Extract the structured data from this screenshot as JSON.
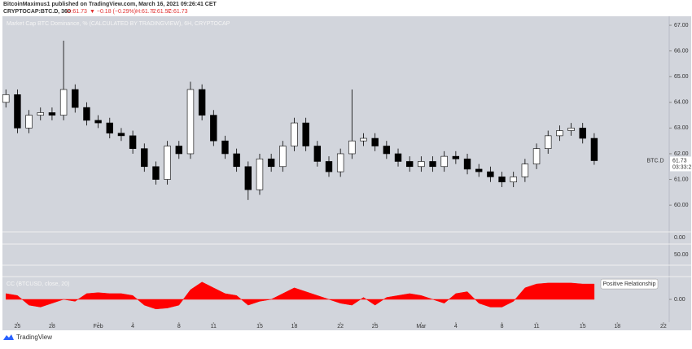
{
  "header": {
    "publisher": "BitcoinMaximus1 published on TradingView.com, March 16, 2021 09:26:41 CET",
    "symbol": "CRYPTOCAP:BTC.D, 360",
    "open": "O:61.73",
    "change": "▼ −0.18 (−0.29%)",
    "high": "H:61.77",
    "low": "L:61.57",
    "close": "C:61.73"
  },
  "panes": [
    "0.00",
    "50.00"
  ],
  "footer": "TradingView",
  "chart_data": [
    {
      "type": "candlestick",
      "title": "Market Cap BTC Dominance, % (CALCULATED BY TRADINGVIEW), 6H, CRYPTOCAP",
      "symbol_label": "BTC.D",
      "last_price": {
        "value": 61.73,
        "label": "61.73"
      },
      "countdown": "03:33:2",
      "x": [
        -1,
        0,
        1,
        2,
        3,
        4,
        5,
        6,
        7,
        8,
        9,
        10,
        11,
        12,
        13,
        14,
        15,
        16,
        17,
        18,
        19,
        20,
        21,
        22,
        23,
        24,
        25,
        26,
        27,
        28,
        29,
        30,
        31,
        32,
        33,
        34,
        35,
        36,
        37,
        38,
        39,
        40,
        41,
        42,
        43,
        44,
        45,
        46,
        47,
        48,
        49,
        50
      ],
      "open": [
        64.0,
        64.3,
        63.0,
        63.5,
        63.6,
        63.5,
        64.5,
        63.8,
        63.3,
        63.2,
        62.8,
        62.7,
        62.2,
        61.5,
        61.0,
        62.3,
        62.0,
        64.5,
        63.5,
        62.5,
        62.0,
        61.5,
        60.6,
        61.8,
        61.5,
        62.3,
        63.2,
        62.3,
        61.7,
        61.3,
        62.0,
        62.5,
        62.6,
        62.3,
        62.0,
        61.7,
        61.5,
        61.7,
        61.5,
        61.9,
        61.8,
        61.4,
        61.3,
        61.1,
        60.9,
        61.1,
        61.6,
        62.2,
        62.7,
        62.9,
        63.0,
        62.6
      ],
      "high": [
        64.5,
        64.5,
        63.7,
        63.8,
        63.8,
        66.4,
        64.7,
        64.0,
        63.5,
        63.4,
        63.0,
        62.9,
        62.4,
        61.7,
        62.5,
        62.5,
        64.8,
        64.7,
        63.7,
        62.7,
        62.2,
        61.7,
        62.0,
        62.0,
        62.5,
        63.4,
        63.4,
        62.5,
        61.9,
        62.2,
        64.5,
        62.8,
        62.8,
        62.5,
        62.2,
        61.9,
        61.9,
        61.9,
        62.1,
        62.1,
        62.0,
        61.6,
        61.5,
        61.3,
        61.3,
        61.8,
        62.4,
        62.9,
        63.1,
        63.2,
        63.2,
        62.8
      ],
      "low": [
        63.8,
        62.8,
        62.8,
        63.3,
        63.3,
        63.3,
        63.6,
        63.1,
        63.0,
        62.6,
        62.5,
        62.0,
        61.3,
        60.8,
        60.8,
        61.8,
        61.8,
        63.3,
        62.3,
        61.8,
        61.3,
        60.2,
        60.4,
        61.3,
        61.3,
        62.1,
        62.1,
        61.5,
        61.1,
        61.1,
        61.8,
        62.3,
        62.1,
        61.8,
        61.5,
        61.3,
        61.3,
        61.3,
        61.3,
        61.6,
        61.2,
        61.1,
        60.9,
        60.7,
        60.7,
        60.9,
        61.4,
        62.0,
        62.5,
        62.7,
        62.4,
        61.57
      ],
      "close": [
        64.3,
        63.0,
        63.5,
        63.6,
        63.5,
        64.5,
        63.8,
        63.3,
        63.2,
        62.8,
        62.7,
        62.2,
        61.5,
        61.0,
        62.3,
        62.0,
        64.5,
        63.5,
        62.5,
        62.0,
        61.5,
        60.6,
        61.8,
        61.5,
        62.3,
        63.2,
        62.3,
        61.7,
        61.3,
        62.0,
        62.5,
        62.6,
        62.3,
        62.0,
        61.7,
        61.5,
        61.7,
        61.5,
        61.9,
        61.8,
        61.4,
        61.3,
        61.1,
        60.9,
        61.1,
        61.6,
        62.2,
        62.7,
        62.9,
        63.0,
        62.6,
        61.73
      ],
      "up_color": "#ffffff",
      "down_color": "#000000",
      "xlim": [
        -1.3,
        56.5
      ],
      "xticks": [
        {
          "value": 0,
          "label": "25"
        },
        {
          "value": 3,
          "label": "28"
        },
        {
          "value": 7,
          "label": "Feb"
        },
        {
          "value": 10,
          "label": "4"
        },
        {
          "value": 14,
          "label": "8"
        },
        {
          "value": 17,
          "label": "11"
        },
        {
          "value": 21,
          "label": "15"
        },
        {
          "value": 24,
          "label": "18"
        },
        {
          "value": 28,
          "label": "22"
        },
        {
          "value": 31,
          "label": "25"
        },
        {
          "value": 35,
          "label": "Mar"
        },
        {
          "value": 38,
          "label": "4"
        },
        {
          "value": 42,
          "label": "8"
        },
        {
          "value": 45,
          "label": "11"
        },
        {
          "value": 49,
          "label": "15"
        },
        {
          "value": 52,
          "label": "18"
        },
        {
          "value": 56,
          "label": "22"
        }
      ],
      "ylim": [
        58.96,
        67.35
      ],
      "yticks": [
        {
          "value": 60,
          "label": "60.00"
        },
        {
          "value": 61,
          "label": "61.00"
        },
        {
          "value": 62,
          "label": "62.00"
        },
        {
          "value": 63,
          "label": "63.00"
        },
        {
          "value": 64,
          "label": "64.00"
        },
        {
          "value": 65,
          "label": "65.00"
        },
        {
          "value": 66,
          "label": "66.00"
        },
        {
          "value": 67,
          "label": "67.00"
        }
      ]
    },
    {
      "type": "area",
      "title": "CC (BTCUSD, close, 20)",
      "color": "#ff0000",
      "annotation": "Positive Relationship",
      "x": [
        -1,
        0,
        1,
        2,
        3,
        4,
        5,
        6,
        7,
        8,
        9,
        10,
        11,
        12,
        13,
        14,
        15,
        16,
        17,
        18,
        19,
        20,
        21,
        22,
        23,
        24,
        25,
        26,
        27,
        28,
        29,
        30,
        31,
        32,
        33,
        34,
        35,
        36,
        37,
        38,
        39,
        40,
        41,
        42,
        43,
        44,
        45,
        46,
        47,
        48,
        49,
        50
      ],
      "values": [
        0.3,
        0.2,
        -0.3,
        -0.4,
        -0.2,
        0.0,
        -0.1,
        0.3,
        0.35,
        0.3,
        0.3,
        0.2,
        -0.3,
        -0.5,
        -0.45,
        -0.3,
        0.5,
        0.9,
        0.6,
        0.3,
        0.2,
        -0.3,
        -0.1,
        0.0,
        0.3,
        0.6,
        0.4,
        0.2,
        0.0,
        -0.2,
        -0.3,
        0.1,
        -0.3,
        0.1,
        0.2,
        0.3,
        0.2,
        0.0,
        -0.2,
        0.3,
        0.4,
        -0.2,
        -0.4,
        -0.4,
        -0.1,
        0.6,
        0.8,
        0.85,
        0.85,
        0.85,
        0.8,
        0.8
      ],
      "ylim": [
        -1.1,
        1.1
      ],
      "yticks": [
        {
          "value": 0,
          "label": "0.00"
        }
      ]
    }
  ]
}
